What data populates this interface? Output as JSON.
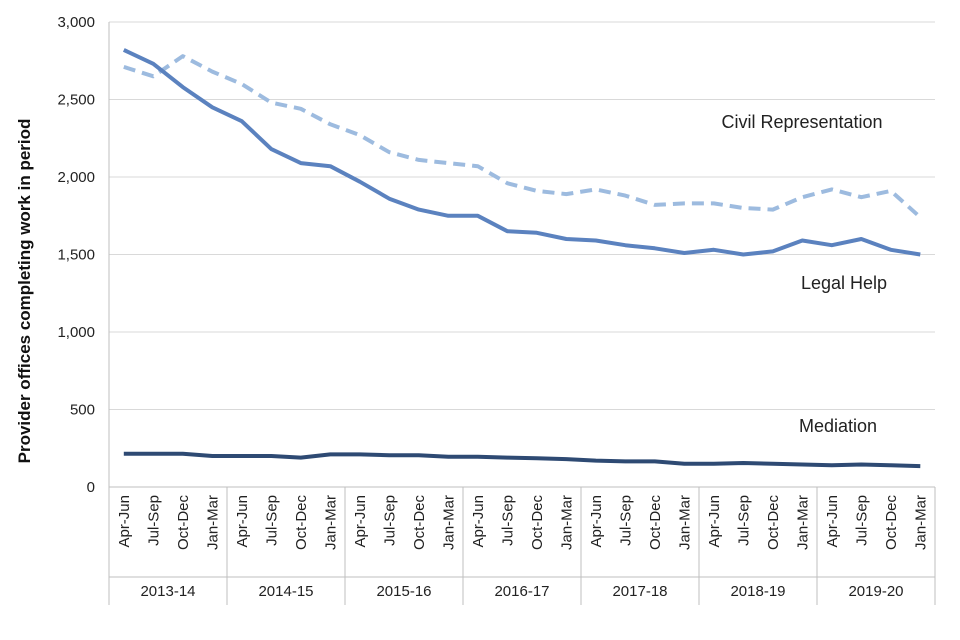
{
  "chart_data": {
    "type": "line",
    "title": "",
    "xlabel": "",
    "ylabel": "Provider offices completing work in period",
    "ylim": [
      0,
      3000
    ],
    "yticks": [
      0,
      500,
      1000,
      1500,
      2000,
      2500,
      3000
    ],
    "ytick_labels": [
      "0",
      "500",
      "1,000",
      "1,500",
      "2,000",
      "2,500",
      "3,000"
    ],
    "grid": true,
    "categories": [
      "Apr-Jun",
      "Jul-Sep",
      "Oct-Dec",
      "Jan-Mar",
      "Apr-Jun",
      "Jul-Sep",
      "Oct-Dec",
      "Jan-Mar",
      "Apr-Jun",
      "Jul-Sep",
      "Oct-Dec",
      "Jan-Mar",
      "Apr-Jun",
      "Jul-Sep",
      "Oct-Dec",
      "Jan-Mar",
      "Apr-Jun",
      "Jul-Sep",
      "Oct-Dec",
      "Jan-Mar",
      "Apr-Jun",
      "Jul-Sep",
      "Oct-Dec",
      "Jan-Mar",
      "Apr-Jun",
      "Jul-Sep",
      "Oct-Dec",
      "Jan-Mar"
    ],
    "groups": [
      "2013-14",
      "2014-15",
      "2015-16",
      "2016-17",
      "2017-18",
      "2018-19",
      "2019-20"
    ],
    "series": [
      {
        "name": "Civil Representation",
        "style": "dashed",
        "color": "#9dbbdf",
        "values": [
          2710,
          2650,
          2780,
          2680,
          2600,
          2480,
          2440,
          2340,
          2270,
          2160,
          2110,
          2090,
          2070,
          1960,
          1910,
          1890,
          1920,
          1880,
          1820,
          1830,
          1830,
          1800,
          1790,
          1870,
          1920,
          1870,
          1910,
          1740
        ]
      },
      {
        "name": "Legal Help",
        "style": "solid",
        "color": "#5b82bf",
        "values": [
          2820,
          2730,
          2580,
          2450,
          2360,
          2180,
          2090,
          2070,
          1970,
          1860,
          1790,
          1750,
          1750,
          1650,
          1640,
          1600,
          1590,
          1560,
          1540,
          1510,
          1530,
          1500,
          1520,
          1590,
          1560,
          1600,
          1530,
          1500
        ]
      },
      {
        "name": "Mediation",
        "style": "solid",
        "color": "#2e4a73",
        "values": [
          215,
          215,
          215,
          200,
          200,
          200,
          190,
          210,
          210,
          205,
          205,
          195,
          195,
          190,
          185,
          180,
          170,
          165,
          165,
          150,
          150,
          155,
          150,
          145,
          140,
          145,
          140,
          135
        ]
      }
    ]
  }
}
